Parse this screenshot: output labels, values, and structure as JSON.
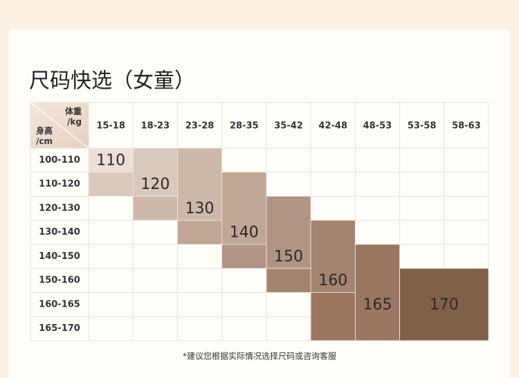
{
  "header": {
    "title": "尺码快选（女童）"
  },
  "table": {
    "corner": {
      "weight": "体重\n/kg",
      "height": "身高\n/cm"
    },
    "columns": [
      "15-18",
      "18-23",
      "23-28",
      "28-35",
      "35-42",
      "42-48",
      "48-53",
      "53-58",
      "58-63"
    ],
    "rows": [
      "100-110",
      "110-120",
      "120-130",
      "130-140",
      "140-150",
      "150-160",
      "160-165",
      "165-170"
    ],
    "sizes": [
      "110",
      "120",
      "130",
      "140",
      "150",
      "160",
      "165",
      "170"
    ]
  },
  "footer": {
    "note": "*建议您根据实际情况选择尺码或咨询客服"
  }
}
